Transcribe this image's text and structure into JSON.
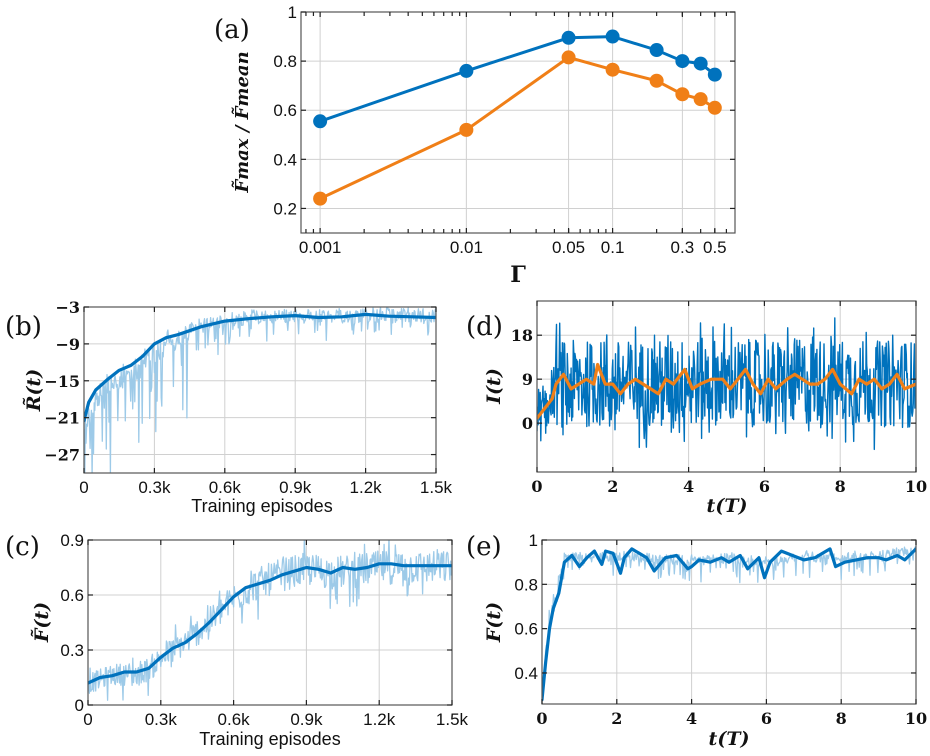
{
  "chart_data": [
    {
      "id": "a",
      "panel_label": "(a)",
      "type": "line",
      "xscale": "log",
      "x": [
        0.001,
        0.01,
        0.05,
        0.1,
        0.2,
        0.3,
        0.4,
        0.5
      ],
      "series": [
        {
          "name": "blue",
          "color": "#0072BD",
          "values": [
            0.555,
            0.76,
            0.895,
            0.9,
            0.845,
            0.8,
            0.79,
            0.745
          ]
        },
        {
          "name": "orange",
          "color": "#F07F17",
          "values": [
            0.24,
            0.52,
            0.815,
            0.765,
            0.72,
            0.665,
            0.645,
            0.61
          ]
        }
      ],
      "xlabel": "Γ",
      "ylabel": "F̃max / F̃mean",
      "xlim": [
        0.00074,
        0.687
      ],
      "ylim": [
        0.1,
        1.0
      ],
      "xticks": [
        0.001,
        0.01,
        0.05,
        0.1,
        0.3,
        0.5
      ],
      "xtick_labels": [
        "0.001",
        "0.01",
        "0.05",
        "0.1",
        "0.3",
        "0.5"
      ],
      "yticks": [
        0.2,
        0.4,
        0.6,
        0.8,
        1.0
      ],
      "ytick_labels": [
        "0.2",
        "0.4",
        "0.6",
        "0.8",
        "1"
      ],
      "grid": true,
      "markers": "circle"
    },
    {
      "id": "b",
      "panel_label": "(b)",
      "type": "line",
      "xlabel": "Training episodes",
      "ylabel": "R̃(t)",
      "xlim": [
        0,
        1500
      ],
      "ylim": [
        -30,
        -3
      ],
      "xticks": [
        0,
        300,
        600,
        900,
        1200,
        1500
      ],
      "xtick_labels": [
        "0",
        "0.3k",
        "0.6k",
        "0.9k",
        "1.2k",
        "1.5k"
      ],
      "yticks": [
        -3,
        -9,
        -15,
        -21,
        -27
      ],
      "ytick_labels": [
        "−3",
        "−9",
        "−15",
        "−21",
        "−27"
      ],
      "grid": true,
      "series": [
        {
          "name": "raw",
          "color": "#9DCAE8",
          "noise": "downward-spikes",
          "x": [
            0,
            50,
            100,
            150,
            200,
            250,
            300,
            350,
            400,
            500,
            600,
            700,
            800,
            900,
            1000,
            1100,
            1200,
            1300,
            1400,
            1500
          ],
          "values": [
            -21,
            -17,
            -15,
            -13.5,
            -12.5,
            -11,
            -9,
            -8,
            -7.3,
            -6,
            -5.2,
            -4.7,
            -4.5,
            -4.4,
            -4.6,
            -4.5,
            -4.2,
            -4.4,
            -4.4,
            -4.6
          ]
        },
        {
          "name": "smoothed",
          "color": "#0072BD",
          "x": [
            0,
            20,
            50,
            100,
            150,
            200,
            250,
            300,
            350,
            400,
            500,
            600,
            700,
            800,
            900,
            1000,
            1100,
            1200,
            1300,
            1400,
            1500
          ],
          "values": [
            -21.5,
            -18.5,
            -16.5,
            -14.8,
            -13.3,
            -12.5,
            -11,
            -9,
            -8,
            -7.5,
            -6.2,
            -5.3,
            -4.9,
            -4.6,
            -4.4,
            -4.7,
            -4.6,
            -4.2,
            -4.5,
            -4.6,
            -4.7
          ]
        }
      ]
    },
    {
      "id": "c",
      "panel_label": "(c)",
      "type": "line",
      "xlabel": "Training episodes",
      "ylabel": "F̃(t)",
      "xlim": [
        0,
        1500
      ],
      "ylim": [
        0,
        0.9
      ],
      "xticks": [
        0,
        300,
        600,
        900,
        1200,
        1500
      ],
      "xtick_labels": [
        "0",
        "0.3k",
        "0.6k",
        "0.9k",
        "1.2k",
        "1.5k"
      ],
      "yticks": [
        0,
        0.3,
        0.6,
        0.9
      ],
      "ytick_labels": [
        "0",
        "0.3",
        "0.6",
        "0.9"
      ],
      "grid": true,
      "series": [
        {
          "name": "raw",
          "color": "#9DCAE8",
          "noise": "symmetric",
          "x": [
            0,
            100,
            200,
            250,
            300,
            400,
            500,
            600,
            700,
            800,
            900,
            1000,
            1100,
            1200,
            1300,
            1400,
            1500
          ],
          "values": [
            0.12,
            0.17,
            0.18,
            0.2,
            0.26,
            0.35,
            0.46,
            0.59,
            0.67,
            0.72,
            0.75,
            0.73,
            0.74,
            0.76,
            0.76,
            0.76,
            0.76
          ]
        },
        {
          "name": "smoothed",
          "color": "#0072BD",
          "x": [
            0,
            50,
            100,
            150,
            200,
            250,
            300,
            350,
            400,
            450,
            500,
            550,
            600,
            650,
            700,
            750,
            800,
            850,
            900,
            950,
            1000,
            1050,
            1100,
            1150,
            1200,
            1250,
            1300,
            1350,
            1400,
            1450,
            1500
          ],
          "values": [
            0.12,
            0.15,
            0.16,
            0.18,
            0.18,
            0.2,
            0.26,
            0.31,
            0.34,
            0.39,
            0.45,
            0.52,
            0.59,
            0.64,
            0.66,
            0.68,
            0.71,
            0.73,
            0.75,
            0.74,
            0.72,
            0.75,
            0.74,
            0.75,
            0.77,
            0.77,
            0.76,
            0.76,
            0.76,
            0.76,
            0.76
          ]
        }
      ]
    },
    {
      "id": "d",
      "panel_label": "(d)",
      "type": "line",
      "xlabel": "t(T)",
      "ylabel": "I(t)",
      "xlim": [
        0,
        10
      ],
      "ylim": [
        -10,
        25
      ],
      "xticks": [
        0,
        2,
        4,
        6,
        8,
        10
      ],
      "xtick_labels": [
        "0",
        "2",
        "4",
        "6",
        "8",
        "10"
      ],
      "yticks": [
        0,
        9,
        18
      ],
      "ytick_labels": [
        "0",
        "9",
        "18"
      ],
      "grid": true,
      "series": [
        {
          "name": "raw",
          "color": "#0072BD",
          "noise": "large-symmetric",
          "x": [
            0,
            0.3,
            0.5,
            1,
            2,
            3,
            4,
            5,
            6,
            7,
            8,
            9,
            10
          ],
          "values": [
            1,
            4,
            8,
            8,
            8,
            8,
            8.5,
            8.5,
            8,
            8.5,
            8.5,
            8,
            8
          ]
        },
        {
          "name": "smoothed",
          "color": "#F07F17",
          "x": [
            0,
            0.2,
            0.4,
            0.5,
            0.7,
            0.9,
            1.1,
            1.3,
            1.5,
            1.6,
            1.8,
            2.0,
            2.2,
            2.4,
            2.6,
            2.8,
            3.0,
            3.2,
            3.4,
            3.6,
            3.9,
            4.1,
            4.3,
            4.6,
            4.9,
            5.1,
            5.3,
            5.5,
            5.7,
            5.9,
            6.1,
            6.3,
            6.6,
            6.8,
            7.0,
            7.2,
            7.4,
            7.6,
            7.8,
            8.0,
            8.3,
            8.5,
            8.7,
            8.9,
            9.1,
            9.3,
            9.5,
            9.7,
            10.0
          ],
          "values": [
            1,
            3,
            5,
            8,
            10,
            7,
            8,
            9,
            8,
            12,
            8,
            8,
            6,
            8,
            9,
            8,
            7,
            6,
            9,
            8,
            11,
            7,
            8,
            9,
            9,
            7,
            9,
            11,
            8,
            6,
            9,
            7,
            9,
            10,
            9,
            8,
            8,
            9,
            11,
            8,
            6,
            9,
            8,
            9,
            7,
            8,
            10,
            7,
            8
          ]
        }
      ]
    },
    {
      "id": "e",
      "panel_label": "(e)",
      "type": "line",
      "xlabel": "t(T)",
      "ylabel": "F(t)",
      "xlim": [
        0,
        10
      ],
      "ylim": [
        0.26,
        1.0
      ],
      "xticks": [
        0,
        2,
        4,
        6,
        8,
        10
      ],
      "xtick_labels": [
        "0",
        "2",
        "4",
        "6",
        "8",
        "10"
      ],
      "yticks": [
        0.4,
        0.6,
        0.8,
        1.0
      ],
      "ytick_labels": [
        "0.4",
        "0.6",
        "0.8",
        "1"
      ],
      "grid": true,
      "series": [
        {
          "name": "raw",
          "color": "#9DCAE8",
          "noise": "downward-spikes",
          "x": [
            0,
            0.2,
            0.4,
            0.6,
            1,
            2,
            3,
            4,
            5,
            6,
            7,
            8,
            9,
            10
          ],
          "values": [
            0.28,
            0.65,
            0.75,
            0.93,
            0.92,
            0.93,
            0.92,
            0.91,
            0.92,
            0.9,
            0.93,
            0.92,
            0.93,
            0.95
          ]
        },
        {
          "name": "smoothed",
          "color": "#0072BD",
          "x": [
            0,
            0.1,
            0.2,
            0.3,
            0.45,
            0.6,
            0.8,
            1.0,
            1.2,
            1.4,
            1.6,
            1.7,
            1.9,
            2.1,
            2.2,
            2.4,
            2.6,
            2.8,
            3.0,
            3.1,
            3.3,
            3.6,
            3.9,
            4.0,
            4.2,
            4.5,
            4.8,
            5.0,
            5.3,
            5.5,
            5.8,
            5.95,
            6.1,
            6.4,
            6.7,
            7.0,
            7.3,
            7.5,
            7.7,
            7.85,
            8.1,
            8.4,
            8.7,
            9.0,
            9.2,
            9.5,
            9.7,
            10.0
          ],
          "values": [
            0.28,
            0.45,
            0.6,
            0.69,
            0.76,
            0.9,
            0.93,
            0.88,
            0.92,
            0.95,
            0.89,
            0.95,
            0.94,
            0.85,
            0.92,
            0.96,
            0.94,
            0.92,
            0.86,
            0.88,
            0.92,
            0.93,
            0.87,
            0.88,
            0.91,
            0.9,
            0.92,
            0.9,
            0.93,
            0.87,
            0.92,
            0.83,
            0.9,
            0.95,
            0.93,
            0.91,
            0.92,
            0.94,
            0.96,
            0.88,
            0.9,
            0.91,
            0.92,
            0.92,
            0.91,
            0.93,
            0.91,
            0.96
          ]
        }
      ]
    }
  ]
}
